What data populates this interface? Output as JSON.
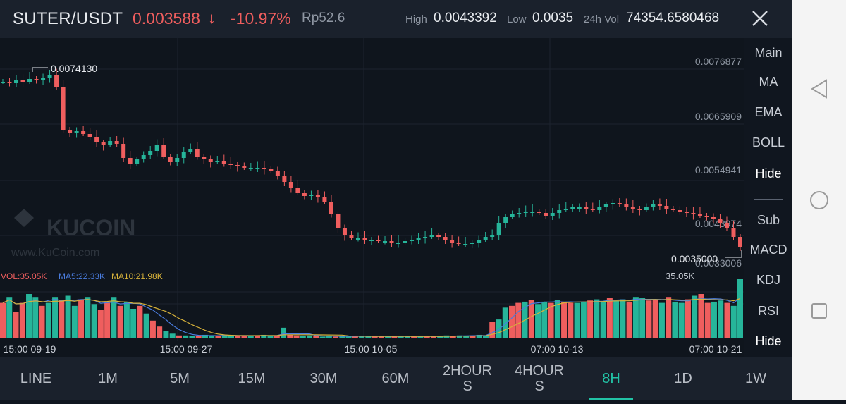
{
  "header": {
    "pair": "SUTER/USDT",
    "price": "0.003588",
    "arrow": "↓",
    "change": "-10.97%",
    "local_price": "Rp52.6",
    "high_label": "High",
    "high_value": "0.0043392",
    "low_label": "Low",
    "low_value": "0.0035",
    "vol_label": "24h Vol",
    "vol_value": "74354.6580468"
  },
  "chart": {
    "price_levels": [
      "0.0076877",
      "0.0065909",
      "0.0054941",
      "0.0043974",
      "0.0033006"
    ],
    "max_label": "0.0074130",
    "min_label": "0.0035000",
    "vol_max_label": "35.05K",
    "watermark_brand": "KUCOIN",
    "watermark_url": "www.KuCoin.com",
    "vol_indicator": "VOL:35.05K",
    "ma5_indicator": "MA5:22.33K",
    "ma10_indicator": "MA10:21.98K",
    "time_labels": [
      "15:00 09-19",
      "15:00 09-27",
      "15:00 10-05",
      "07:00 10-13",
      "07:00 10-21"
    ],
    "colors": {
      "up": "#26b59a",
      "down": "#ef5e5e",
      "ma5": "#4a7de0",
      "ma10": "#d7b23a"
    }
  },
  "right_menu": {
    "main": "Main",
    "ma": "MA",
    "ema": "EMA",
    "boll": "BOLL",
    "hide_main": "Hide",
    "sub": "Sub",
    "macd": "MACD",
    "kdj": "KDJ",
    "rsi": "RSI",
    "hide_sub": "Hide"
  },
  "tabs": [
    {
      "label": "LINE"
    },
    {
      "label": "1M"
    },
    {
      "label": "5M"
    },
    {
      "label": "15M"
    },
    {
      "label": "30M"
    },
    {
      "label": "60M"
    },
    {
      "label": "2HOUR\nS"
    },
    {
      "label": "4HOUR\nS"
    },
    {
      "label": "8H"
    },
    {
      "label": "1D"
    },
    {
      "label": "1W"
    }
  ],
  "active_tab": "8H",
  "icons": {
    "close": "close-icon",
    "back": "back-triangle-icon",
    "home": "home-circle-icon",
    "recents": "recents-square-icon"
  }
}
